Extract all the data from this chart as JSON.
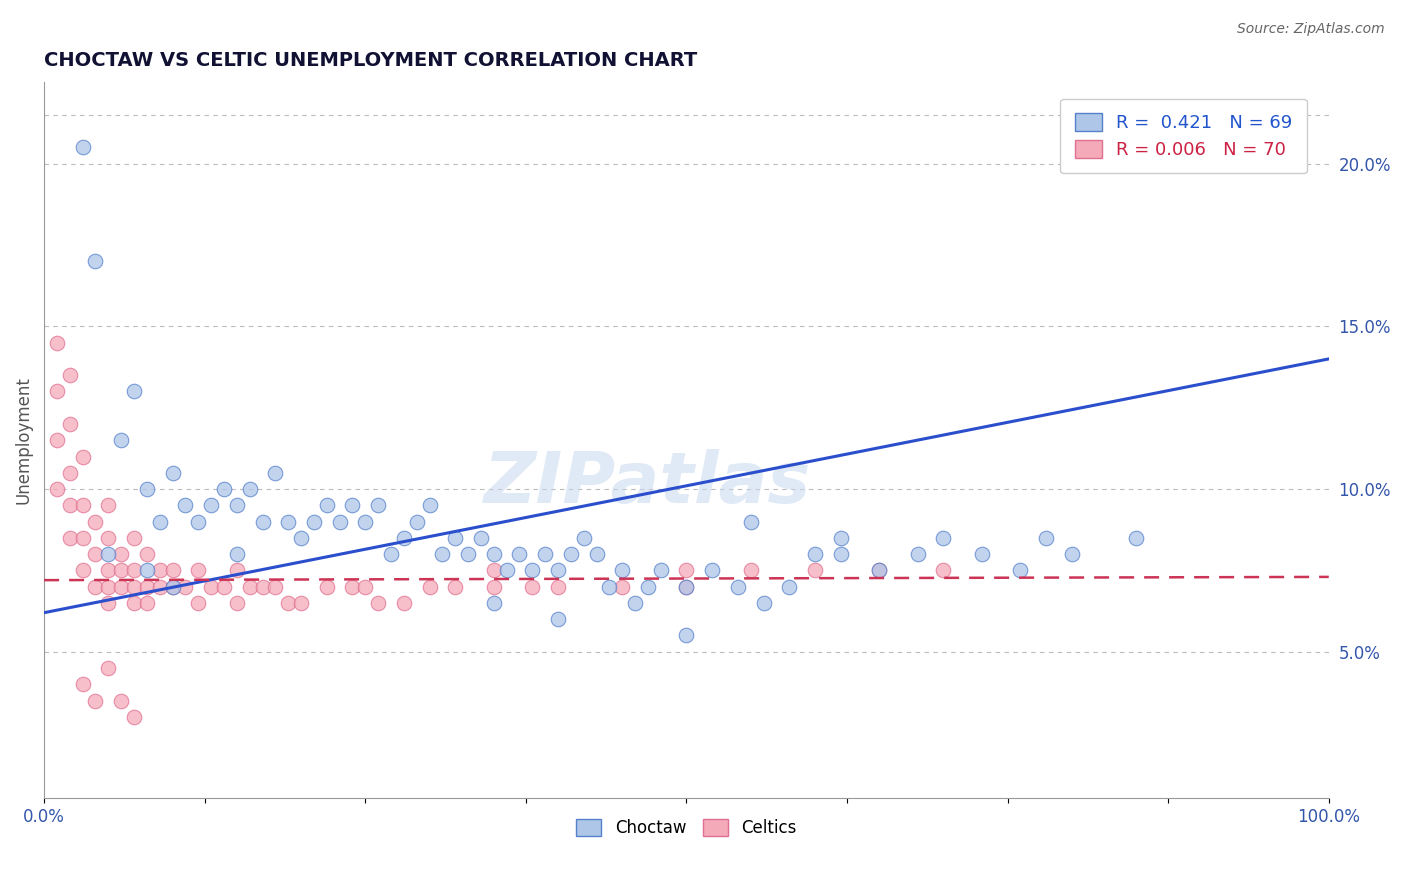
{
  "title": "CHOCTAW VS CELTIC UNEMPLOYMENT CORRELATION CHART",
  "source": "Source: ZipAtlas.com",
  "ylabel": "Unemployment",
  "legend_blue_text": "R =  0.421   N = 69",
  "legend_pink_text": "R = 0.006   N = 70",
  "choctaw_color": "#aec6e8",
  "celtic_color": "#f4aab8",
  "trend_blue": "#2b4fcc",
  "trend_pink": "#cc3355",
  "watermark_text": "ZIPatlas",
  "choctaw_x": [
    3,
    4,
    6,
    7,
    8,
    9,
    10,
    11,
    12,
    13,
    14,
    15,
    16,
    17,
    18,
    19,
    20,
    21,
    22,
    23,
    24,
    25,
    26,
    27,
    28,
    29,
    30,
    31,
    32,
    33,
    34,
    35,
    36,
    37,
    38,
    39,
    40,
    41,
    42,
    43,
    44,
    45,
    46,
    47,
    48,
    50,
    52,
    54,
    56,
    58,
    60,
    62,
    65,
    68,
    70,
    73,
    76,
    80,
    35,
    40,
    50,
    55,
    62,
    78,
    85,
    5,
    8,
    10,
    15
  ],
  "choctaw_y": [
    20.5,
    17.0,
    11.5,
    13.0,
    10.0,
    9.0,
    10.5,
    9.5,
    9.0,
    9.5,
    10.0,
    9.5,
    10.0,
    9.0,
    10.5,
    9.0,
    8.5,
    9.0,
    9.5,
    9.0,
    9.5,
    9.0,
    9.5,
    8.0,
    8.5,
    9.0,
    9.5,
    8.0,
    8.5,
    8.0,
    8.5,
    8.0,
    7.5,
    8.0,
    7.5,
    8.0,
    7.5,
    8.0,
    8.5,
    8.0,
    7.0,
    7.5,
    6.5,
    7.0,
    7.5,
    7.0,
    7.5,
    7.0,
    6.5,
    7.0,
    8.0,
    8.5,
    7.5,
    8.0,
    8.5,
    8.0,
    7.5,
    8.0,
    6.5,
    6.0,
    5.5,
    9.0,
    8.0,
    8.5,
    8.5,
    8.0,
    7.5,
    7.0,
    8.0
  ],
  "celtic_x": [
    1,
    1,
    1,
    1,
    2,
    2,
    2,
    2,
    2,
    3,
    3,
    3,
    3,
    4,
    4,
    4,
    5,
    5,
    5,
    5,
    5,
    6,
    6,
    6,
    7,
    7,
    7,
    7,
    8,
    8,
    8,
    9,
    9,
    10,
    10,
    11,
    12,
    12,
    13,
    14,
    15,
    15,
    16,
    17,
    18,
    19,
    20,
    22,
    24,
    26,
    28,
    30,
    32,
    35,
    38,
    40,
    45,
    50,
    3,
    4,
    5,
    6,
    7,
    25,
    35,
    50,
    55,
    60,
    65,
    70
  ],
  "celtic_y": [
    14.5,
    13.0,
    11.5,
    10.0,
    13.5,
    12.0,
    10.5,
    9.5,
    8.5,
    11.0,
    9.5,
    8.5,
    7.5,
    9.0,
    8.0,
    7.0,
    9.5,
    8.5,
    7.5,
    7.0,
    6.5,
    8.0,
    7.5,
    7.0,
    8.5,
    7.5,
    7.0,
    6.5,
    8.0,
    7.0,
    6.5,
    7.5,
    7.0,
    7.5,
    7.0,
    7.0,
    7.5,
    6.5,
    7.0,
    7.0,
    7.5,
    6.5,
    7.0,
    7.0,
    7.0,
    6.5,
    6.5,
    7.0,
    7.0,
    6.5,
    6.5,
    7.0,
    7.0,
    7.0,
    7.0,
    7.0,
    7.0,
    7.0,
    4.0,
    3.5,
    4.5,
    3.5,
    3.0,
    7.0,
    7.5,
    7.5,
    7.5,
    7.5,
    7.5,
    7.5
  ],
  "blue_trend_x0": 0,
  "blue_trend_x1": 100,
  "blue_trend_y0": 6.2,
  "blue_trend_y1": 14.0,
  "pink_trend_x0": 0,
  "pink_trend_x1": 100,
  "pink_trend_y0": 7.2,
  "pink_trend_y1": 7.3,
  "ymin": 0.5,
  "ymax": 22.5,
  "xmin": 0,
  "xmax": 100,
  "yticks": [
    5,
    10,
    15,
    20
  ],
  "ytick_labels": [
    "5.0%",
    "10.0%",
    "15.0%",
    "20.0%"
  ],
  "top_line_y": 21.5,
  "title_fontsize": 14,
  "source_fontsize": 10,
  "marker_size": 110,
  "marker_lw": 0.8
}
